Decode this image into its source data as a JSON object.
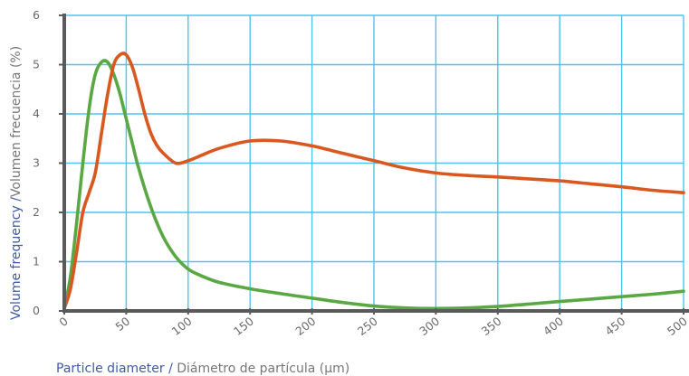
{
  "chart_data": {
    "type": "line",
    "xlabel_part1": "Particle diameter / ",
    "xlabel_part2": "Diámetro de partícula (µm)",
    "ylabel_part1": "Volume frequency /",
    "ylabel_part2": "Volumen frecuencia (%)",
    "xlim": [
      0,
      500
    ],
    "ylim": [
      0,
      6
    ],
    "x_ticks": [
      "0",
      "50",
      "100",
      "150",
      "200",
      "250",
      "300",
      "350",
      "400",
      "450",
      "500"
    ],
    "y_ticks": [
      "0",
      "1",
      "2",
      "3",
      "4",
      "5",
      "6"
    ],
    "grid": true,
    "colors": {
      "grid": "#4fc3ef",
      "axis": "#5a5a5a",
      "ticks": "#6a6a6a",
      "label_blue": "#3e5aa8",
      "label_grey": "#777777"
    },
    "series": [
      {
        "color": "#5aa843",
        "x": [
          0,
          5,
          10,
          15,
          20,
          25,
          30,
          35,
          40,
          45,
          50,
          55,
          60,
          70,
          80,
          90,
          100,
          110,
          125,
          150,
          175,
          200,
          225,
          250,
          275,
          300,
          325,
          350,
          375,
          400,
          425,
          450,
          475,
          500
        ],
        "y": [
          0.05,
          0.7,
          1.8,
          3.0,
          4.1,
          4.8,
          5.05,
          5.05,
          4.8,
          4.4,
          3.9,
          3.4,
          2.9,
          2.1,
          1.5,
          1.1,
          0.85,
          0.72,
          0.58,
          0.45,
          0.35,
          0.26,
          0.17,
          0.1,
          0.06,
          0.05,
          0.06,
          0.09,
          0.14,
          0.19,
          0.24,
          0.29,
          0.34,
          0.4
        ]
      },
      {
        "color": "#d9581f",
        "x": [
          0,
          5,
          10,
          15,
          20,
          25,
          30,
          35,
          40,
          45,
          50,
          55,
          60,
          65,
          70,
          75,
          80,
          90,
          100,
          110,
          125,
          150,
          175,
          200,
          225,
          250,
          275,
          300,
          325,
          350,
          375,
          400,
          425,
          450,
          475,
          500
        ],
        "y": [
          0.05,
          0.45,
          1.2,
          2.0,
          2.4,
          2.8,
          3.6,
          4.4,
          5.0,
          5.2,
          5.2,
          4.95,
          4.5,
          4.0,
          3.6,
          3.35,
          3.2,
          3.0,
          3.05,
          3.15,
          3.3,
          3.45,
          3.45,
          3.35,
          3.2,
          3.05,
          2.9,
          2.8,
          2.75,
          2.72,
          2.68,
          2.64,
          2.58,
          2.52,
          2.45,
          2.4
        ]
      }
    ]
  }
}
